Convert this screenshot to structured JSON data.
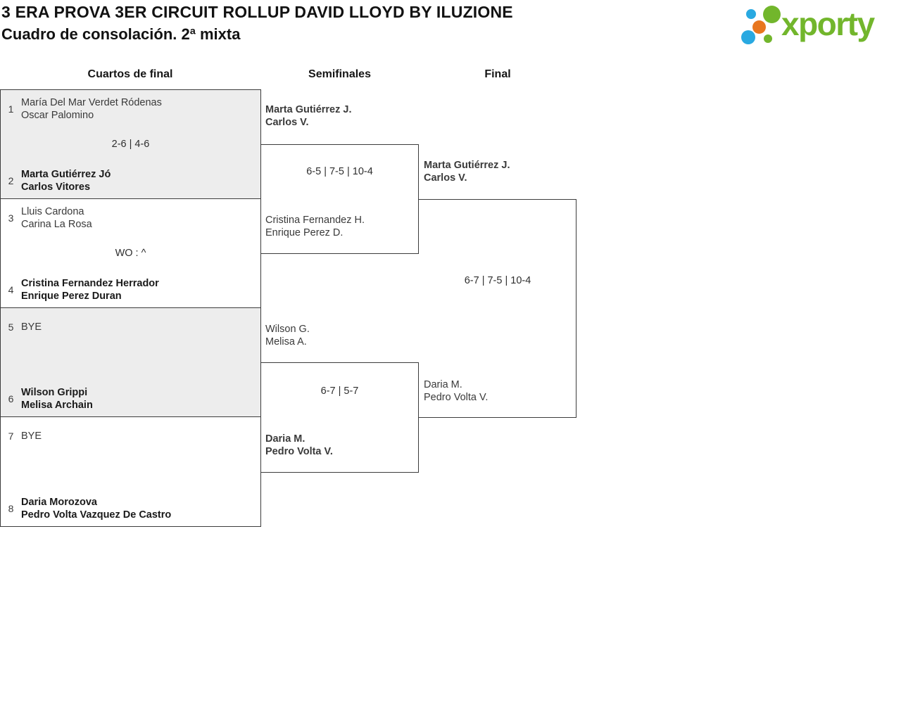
{
  "header": {
    "title": "3 ERA PROVA 3ER CIRCUIT ROLLUP DAVID LLOYD BY ILUZIONE",
    "subtitle": "Cuadro de consolación. 2ª mixta"
  },
  "logo": {
    "text": "xporty",
    "green": "#72b62c",
    "blue": "#29a9e1",
    "orange": "#e8761e"
  },
  "columns": {
    "quarterfinals": "Cuartos de final",
    "semifinals": "Semifinales",
    "final": "Final"
  },
  "colors": {
    "match_alt_background": "#ededed",
    "border": "#3c3c3c"
  },
  "quarterfinals": [
    {
      "seed_top": "1",
      "top_line1": "María Del Mar Verdet Ródenas",
      "top_line2": "Oscar Palomino",
      "top_winner": false,
      "score": "2-6 | 4-6",
      "seed_bottom": "2",
      "bottom_line1": "Marta Gutiérrez Jó",
      "bottom_line2": "Carlos Vitores",
      "bottom_winner": true
    },
    {
      "seed_top": "3",
      "top_line1": "Lluis Cardona",
      "top_line2": "Carina La Rosa",
      "top_winner": false,
      "score": "WO : ^",
      "seed_bottom": "4",
      "bottom_line1": "Cristina Fernandez Herrador",
      "bottom_line2": "Enrique Perez Duran",
      "bottom_winner": true
    },
    {
      "seed_top": "5",
      "top_line1": "BYE",
      "top_line2": "",
      "top_winner": false,
      "score": "",
      "seed_bottom": "6",
      "bottom_line1": "Wilson Grippi",
      "bottom_line2": "Melisa Archain",
      "bottom_winner": true
    },
    {
      "seed_top": "7",
      "top_line1": "BYE",
      "top_line2": "",
      "top_winner": false,
      "score": "",
      "seed_bottom": "8",
      "bottom_line1": "Daria Morozova",
      "bottom_line2": "Pedro Volta Vazquez De Castro",
      "bottom_winner": true
    }
  ],
  "semifinals": [
    {
      "top_line1": "Marta Gutiérrez J.",
      "top_line2": "Carlos V.",
      "top_winner": true,
      "score": "6-5 | 7-5 | 10-4",
      "bottom_line1": "Cristina Fernandez H.",
      "bottom_line2": "Enrique Perez D.",
      "bottom_winner": false
    },
    {
      "top_line1": "Wilson G.",
      "top_line2": "Melisa A.",
      "top_winner": false,
      "score": "6-7 | 5-7",
      "bottom_line1": "Daria M.",
      "bottom_line2": "Pedro Volta V.",
      "bottom_winner": true
    }
  ],
  "final": {
    "top_line1": "Marta Gutiérrez J.",
    "top_line2": "Carlos V.",
    "top_winner": true,
    "score": "6-7 | 7-5 | 10-4",
    "bottom_line1": "Daria M.",
    "bottom_line2": "Pedro Volta V.",
    "bottom_winner": false
  }
}
